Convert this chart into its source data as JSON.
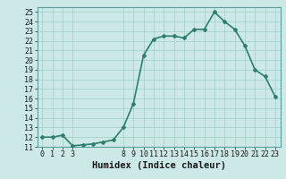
{
  "x": [
    0,
    1,
    2,
    3,
    4,
    5,
    6,
    7,
    8,
    9,
    10,
    11,
    12,
    13,
    14,
    15,
    16,
    17,
    18,
    19,
    20,
    21,
    22,
    23
  ],
  "y": [
    12,
    12,
    12.2,
    11.1,
    11.2,
    11.3,
    11.5,
    11.7,
    13.0,
    15.5,
    20.5,
    22.2,
    22.5,
    22.5,
    22.3,
    23.2,
    23.2,
    25.0,
    24.0,
    23.2,
    21.5,
    19.0,
    18.3,
    16.2
  ],
  "line_color": "#2e7d6e",
  "marker": "D",
  "marker_size": 2.0,
  "bg_color": "#cce9e7",
  "grid_color": "#9dcfcb",
  "xlabel": "Humidex (Indice chaleur)",
  "xlim": [
    -0.5,
    23.5
  ],
  "ylim": [
    11,
    25.5
  ],
  "yticks": [
    11,
    12,
    13,
    14,
    15,
    16,
    17,
    18,
    19,
    20,
    21,
    22,
    23,
    24,
    25
  ],
  "xticks": [
    0,
    1,
    2,
    3,
    8,
    9,
    10,
    11,
    12,
    13,
    14,
    15,
    16,
    17,
    18,
    19,
    20,
    21,
    22,
    23
  ],
  "xlabel_fontsize": 7.5,
  "tick_fontsize": 6.0,
  "linewidth": 1.2
}
